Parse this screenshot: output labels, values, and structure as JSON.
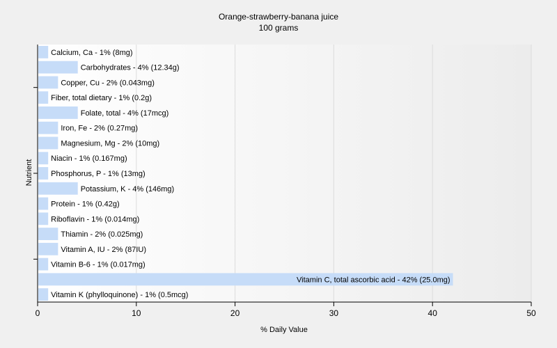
{
  "chart_data": {
    "type": "bar",
    "orientation": "horizontal",
    "title": "Orange-strawberry-banana juice",
    "subtitle": "100 grams",
    "xlabel": "% Daily Value",
    "ylabel": "Nutrient",
    "xlim": [
      0,
      50
    ],
    "xticks": [
      0,
      10,
      20,
      30,
      40,
      50
    ],
    "grid": true,
    "bar_color": "#c6dcf8",
    "categories": [
      "Calcium, Ca",
      "Carbohydrates",
      "Copper, Cu",
      "Fiber, total dietary",
      "Folate, total",
      "Iron, Fe",
      "Magnesium, Mg",
      "Niacin",
      "Phosphorus, P",
      "Potassium, K",
      "Protein",
      "Riboflavin",
      "Thiamin",
      "Vitamin A, IU",
      "Vitamin B-6",
      "Vitamin C, total ascorbic acid",
      "Vitamin K (phylloquinone)"
    ],
    "values": [
      1,
      4,
      2,
      1,
      4,
      2,
      2,
      1,
      1,
      4,
      1,
      1,
      2,
      2,
      1,
      42,
      1
    ],
    "labels": [
      "Calcium, Ca - 1% (8mg)",
      "Carbohydrates - 4% (12.34g)",
      "Copper, Cu - 2% (0.043mg)",
      "Fiber, total dietary - 1% (0.2g)",
      "Folate, total - 4% (17mcg)",
      "Iron, Fe - 2% (0.27mg)",
      "Magnesium, Mg - 2% (10mg)",
      "Niacin - 1% (0.167mg)",
      "Phosphorus, P - 1% (13mg)",
      "Potassium, K - 4% (146mg)",
      "Protein - 1% (0.42g)",
      "Riboflavin - 1% (0.014mg)",
      "Thiamin - 2% (0.025mg)",
      "Vitamin A, IU - 2% (87IU)",
      "Vitamin B-6 - 1% (0.017mg)",
      "Vitamin C, total ascorbic acid - 42% (25.0mg)",
      "Vitamin K (phylloquinone) - 1% (0.5mcg)"
    ]
  }
}
